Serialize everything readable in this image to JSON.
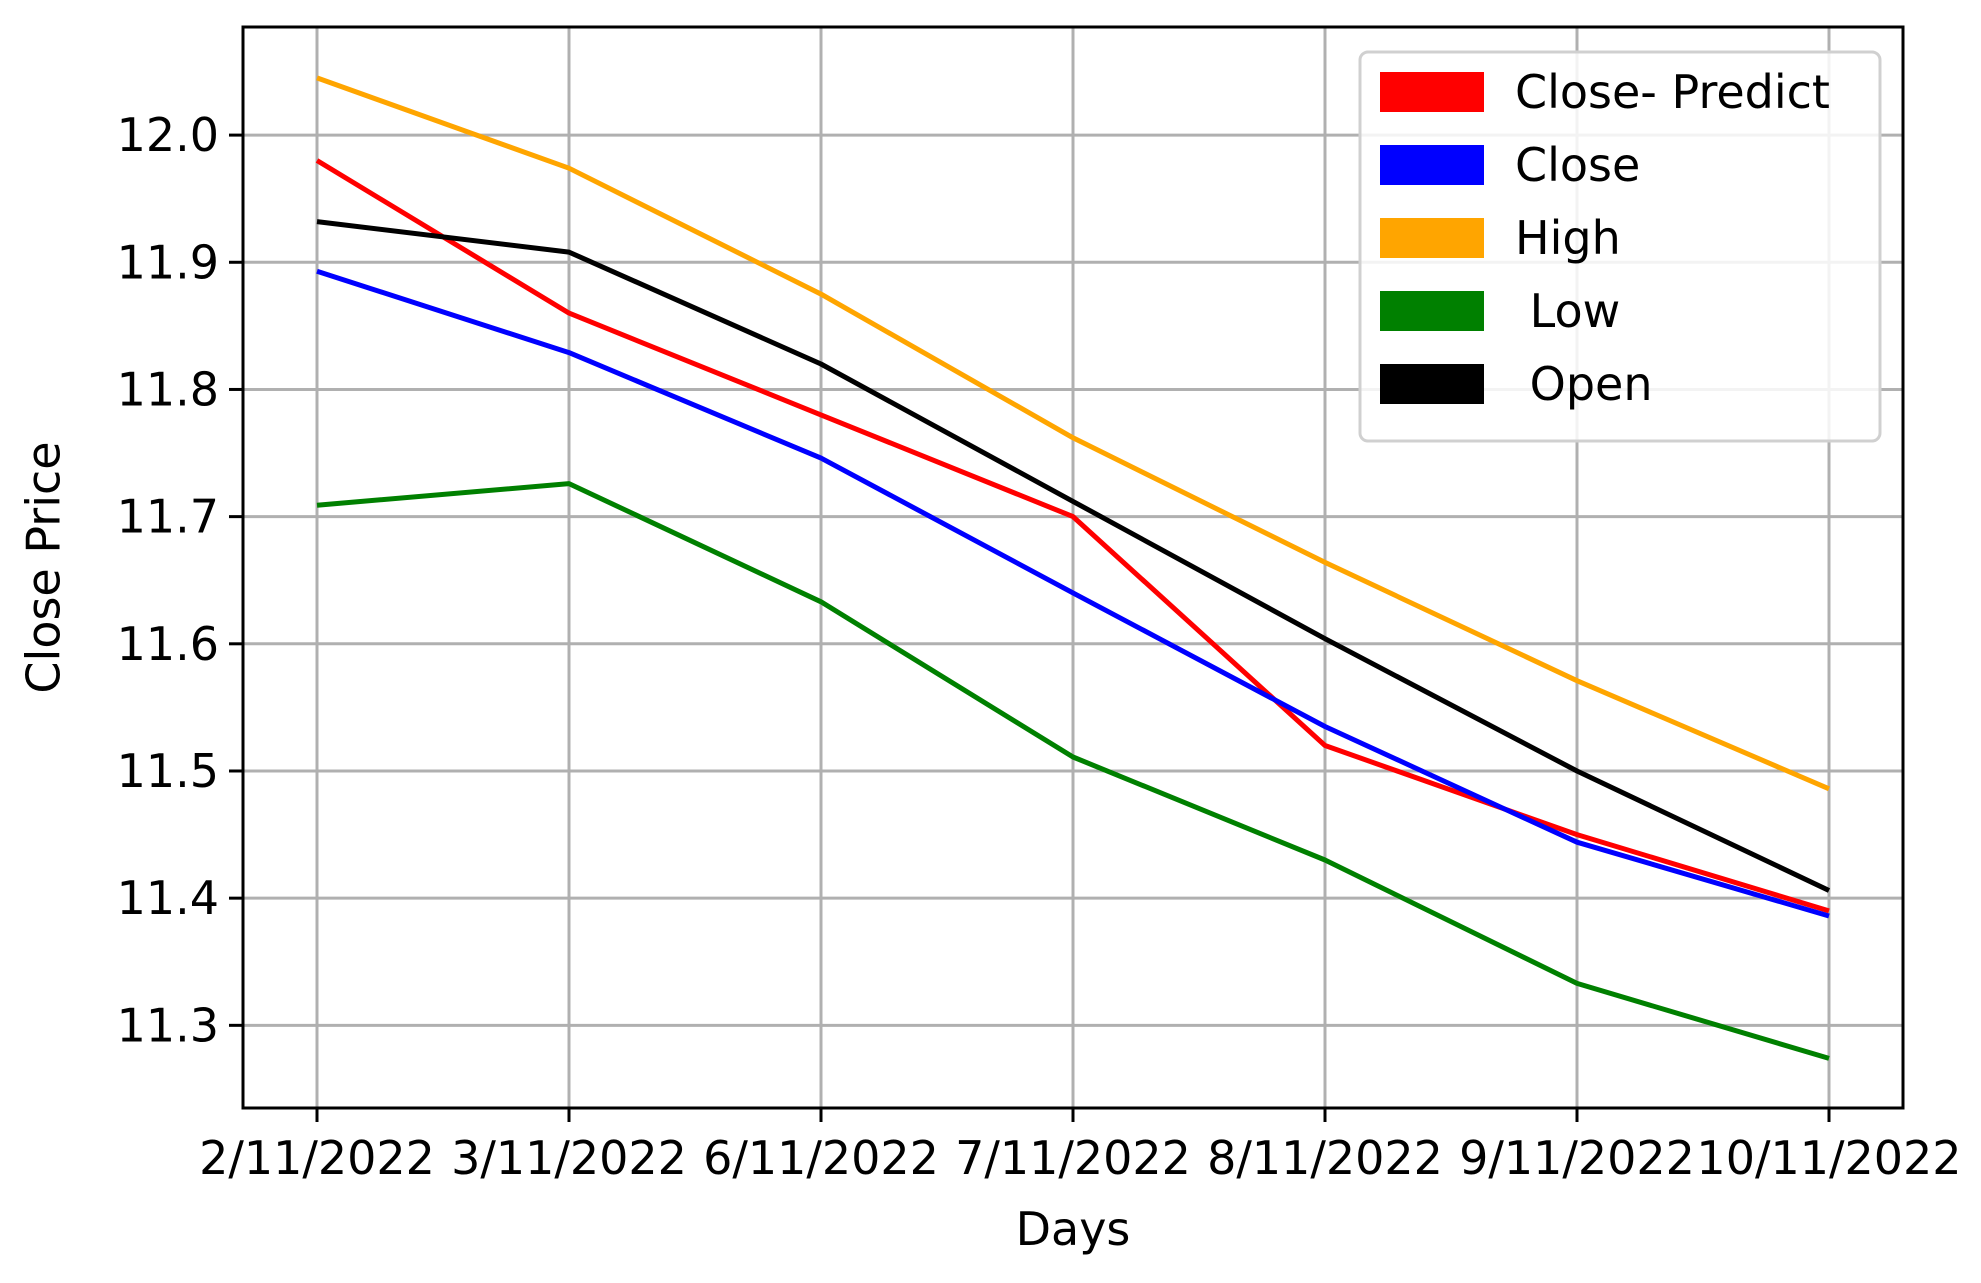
{
  "chart_data": {
    "type": "line",
    "title": "",
    "xlabel": "Days",
    "ylabel": "Close Price",
    "categories": [
      "2/11/2022",
      "3/11/2022",
      "6/11/2022",
      "7/11/2022",
      "8/11/2022",
      "9/11/2022",
      "10/11/2022"
    ],
    "yticks": [
      "11.3",
      "11.4",
      "11.5",
      "11.6",
      "11.7",
      "11.8",
      "11.9",
      "12.0"
    ],
    "ylim": [
      11.235,
      12.085
    ],
    "grid": true,
    "legend_position": "top-right",
    "series": [
      {
        "name": "Close- Predict",
        "color": "#ff0000",
        "values": [
          11.98,
          11.86,
          11.78,
          11.7,
          11.52,
          11.45,
          11.39
        ]
      },
      {
        "name": "Close",
        "color": "#0000ff",
        "values": [
          11.893,
          11.829,
          11.746,
          11.64,
          11.535,
          11.444,
          11.386
        ]
      },
      {
        "name": "High",
        "color": "#ffa500",
        "values": [
          12.045,
          11.974,
          11.875,
          11.762,
          11.664,
          11.571,
          11.486
        ]
      },
      {
        "name": " Low",
        "color": "#008000",
        "values": [
          11.709,
          11.726,
          11.633,
          11.511,
          11.43,
          11.333,
          11.274
        ]
      },
      {
        "name": " Open",
        "color": "#000000",
        "values": [
          11.932,
          11.908,
          11.82,
          11.712,
          11.604,
          11.5,
          11.406
        ]
      }
    ]
  }
}
